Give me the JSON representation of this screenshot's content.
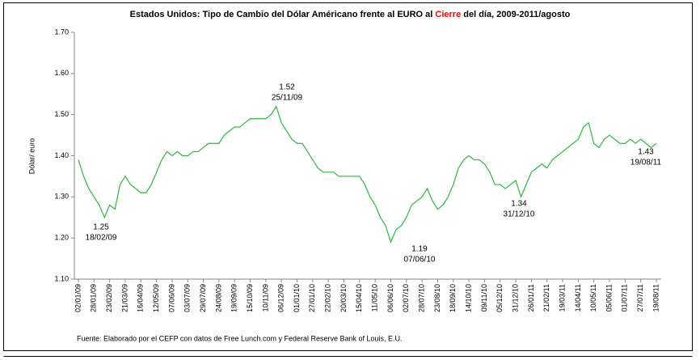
{
  "chart_data": {
    "type": "line",
    "title": [
      "Estados Unidos: Tipo de Cambio del Dólar Américano frente al EURO al ",
      "Cierre",
      " del día, 2009-2011/agosto"
    ],
    "title_highlight_color": "#ff0000",
    "ylabel": "Dólar/ euro",
    "source": "Fuente: Elaborado por el CEFP con datos de Free Lunch.com y Federal Reserve Bank of Louis, E.U.",
    "categories": [
      "02/01/09",
      null,
      null,
      "28/01/09",
      null,
      null,
      "23/02/09",
      null,
      null,
      "21/03/09",
      null,
      null,
      "16/04/09",
      null,
      null,
      "12/05/09",
      null,
      null,
      "07/06/09",
      null,
      null,
      "03/07/09",
      null,
      null,
      "29/07/09",
      null,
      null,
      "24/08/09",
      null,
      null,
      "19/09/09",
      null,
      null,
      "15/10/09",
      null,
      null,
      "10/11/09",
      null,
      null,
      "06/12/09",
      null,
      null,
      "01/01/10",
      null,
      null,
      "27/01/10",
      null,
      null,
      "22/02/10",
      null,
      null,
      "20/03/10",
      null,
      null,
      "15/04/10",
      null,
      null,
      "11/05/10",
      null,
      null,
      "06/06/10",
      null,
      null,
      "02/07/10",
      null,
      null,
      "28/07/10",
      null,
      null,
      "23/08/10",
      null,
      null,
      "18/09/10",
      null,
      null,
      "14/10/10",
      null,
      null,
      "09/11/10",
      null,
      null,
      "05/12/10",
      null,
      null,
      "31/12/10",
      null,
      null,
      "26/01/11",
      null,
      null,
      "21/02/11",
      null,
      null,
      "19/03/11",
      null,
      null,
      "14/04/11",
      null,
      null,
      "10/05/11",
      null,
      null,
      "05/06/11",
      null,
      null,
      "01/07/11",
      null,
      null,
      "27/07/11",
      null,
      null,
      "19/08/11"
    ],
    "series": [
      {
        "color": "#2db83d",
        "values": [
          1.39,
          1.35,
          1.32,
          1.3,
          1.28,
          1.25,
          1.28,
          1.27,
          1.33,
          1.35,
          1.33,
          1.32,
          1.31,
          1.31,
          1.33,
          1.36,
          1.39,
          1.41,
          1.4,
          1.41,
          1.4,
          1.4,
          1.41,
          1.41,
          1.42,
          1.43,
          1.43,
          1.43,
          1.45,
          1.46,
          1.47,
          1.47,
          1.48,
          1.49,
          1.49,
          1.49,
          1.49,
          1.5,
          1.52,
          1.48,
          1.46,
          1.44,
          1.43,
          1.43,
          1.41,
          1.39,
          1.37,
          1.36,
          1.36,
          1.36,
          1.35,
          1.35,
          1.35,
          1.35,
          1.35,
          1.33,
          1.3,
          1.28,
          1.25,
          1.23,
          1.19,
          1.22,
          1.23,
          1.25,
          1.28,
          1.29,
          1.3,
          1.32,
          1.29,
          1.27,
          1.28,
          1.3,
          1.33,
          1.37,
          1.39,
          1.4,
          1.39,
          1.39,
          1.38,
          1.36,
          1.33,
          1.33,
          1.32,
          1.33,
          1.34,
          1.3,
          1.33,
          1.36,
          1.37,
          1.38,
          1.37,
          1.39,
          1.4,
          1.41,
          1.42,
          1.43,
          1.44,
          1.47,
          1.48,
          1.43,
          1.42,
          1.44,
          1.45,
          1.44,
          1.43,
          1.43,
          1.44,
          1.43,
          1.44,
          1.43,
          1.42,
          1.43
        ]
      }
    ],
    "ylim": [
      1.1,
      1.7
    ],
    "yticks": [
      {
        "value": 1.1,
        "label": "1.10"
      },
      {
        "value": 1.2,
        "label": "1.20"
      },
      {
        "value": 1.3,
        "label": "1.30"
      },
      {
        "value": 1.4,
        "label": "1.40"
      },
      {
        "value": 1.5,
        "label": "1.50"
      },
      {
        "value": 1.6,
        "label": "1.60"
      },
      {
        "value": 1.7,
        "label": "1.70"
      }
    ],
    "annotations": [
      {
        "value": "1.25",
        "date": "18/02/09"
      },
      {
        "value": "1.52",
        "date": "25/11/09"
      },
      {
        "value": "1.19",
        "date": "07/06/10"
      },
      {
        "value": "1.34",
        "date": "31/12/10"
      },
      {
        "value": "1.43",
        "date": "19/08/11"
      }
    ]
  }
}
